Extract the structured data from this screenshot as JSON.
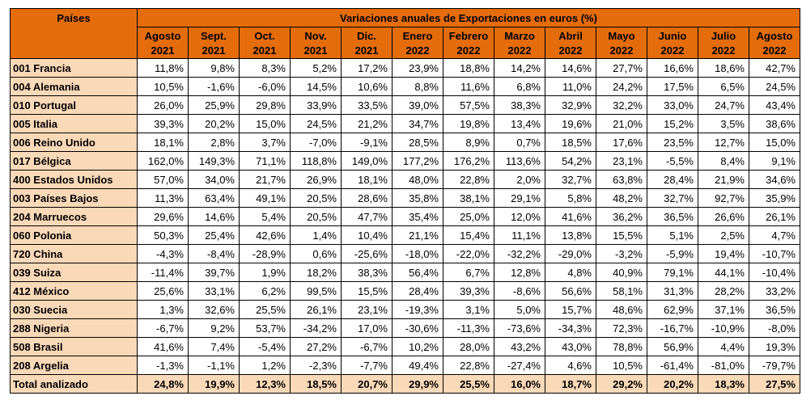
{
  "table": {
    "country_header": "Países",
    "title": "Variaciones anuales de Exportaciones en euros  (%)",
    "columns": [
      {
        "month": "Agosto",
        "year": "2021"
      },
      {
        "month": "Sept.",
        "year": "2021"
      },
      {
        "month": "Oct.",
        "year": "2021"
      },
      {
        "month": "Nov.",
        "year": "2021"
      },
      {
        "month": "Dic.",
        "year": "2021"
      },
      {
        "month": "Enero",
        "year": "2022"
      },
      {
        "month": "Febrero",
        "year": "2022"
      },
      {
        "month": "Marzo",
        "year": "2022"
      },
      {
        "month": "Abril",
        "year": "2022"
      },
      {
        "month": "Mayo",
        "year": "2022"
      },
      {
        "month": "Junio",
        "year": "2022"
      },
      {
        "month": "Julio",
        "year": "2022"
      },
      {
        "month": "Agosto",
        "year": "2022"
      }
    ],
    "rows": [
      {
        "country": "001 Francia",
        "values": [
          "11,8%",
          "9,8%",
          "8,3%",
          "5,2%",
          "17,2%",
          "23,9%",
          "18,8%",
          "14,2%",
          "14,6%",
          "27,7%",
          "16,6%",
          "18,6%",
          "42,7%"
        ]
      },
      {
        "country": "004 Alemania",
        "values": [
          "10,5%",
          "-1,6%",
          "-6,0%",
          "14,5%",
          "10,6%",
          "8,8%",
          "11,6%",
          "6,8%",
          "11,0%",
          "24,2%",
          "17,5%",
          "6,5%",
          "24,5%"
        ]
      },
      {
        "country": "010 Portugal",
        "values": [
          "26,0%",
          "25,9%",
          "29,8%",
          "33,9%",
          "33,5%",
          "39,0%",
          "57,5%",
          "38,3%",
          "32,9%",
          "32,2%",
          "33,0%",
          "24,7%",
          "43,4%"
        ]
      },
      {
        "country": "005 Italia",
        "values": [
          "39,3%",
          "20,2%",
          "15,0%",
          "24,5%",
          "21,2%",
          "34,7%",
          "19,8%",
          "13,4%",
          "19,6%",
          "21,0%",
          "15,2%",
          "3,5%",
          "38,6%"
        ]
      },
      {
        "country": "006 Reino Unido",
        "values": [
          "18,1%",
          "2,8%",
          "3,7%",
          "-7,0%",
          "-9,1%",
          "28,5%",
          "8,9%",
          "0,7%",
          "18,5%",
          "17,6%",
          "23,5%",
          "12,7%",
          "15,0%"
        ]
      },
      {
        "country": "017 Bélgica",
        "values": [
          "162,0%",
          "149,3%",
          "71,1%",
          "118,8%",
          "149,0%",
          "177,2%",
          "176,2%",
          "113,6%",
          "54,2%",
          "23,1%",
          "-5,5%",
          "8,4%",
          "9,1%"
        ]
      },
      {
        "country": "400 Estados Unidos",
        "values": [
          "57,0%",
          "34,0%",
          "21,7%",
          "26,9%",
          "18,1%",
          "48,0%",
          "22,8%",
          "2,0%",
          "32,7%",
          "63,8%",
          "28,4%",
          "21,9%",
          "34,6%"
        ]
      },
      {
        "country": "003 Países Bajos",
        "values": [
          "11,3%",
          "63,4%",
          "49,1%",
          "20,5%",
          "28,6%",
          "35,8%",
          "38,1%",
          "29,1%",
          "5,8%",
          "48,2%",
          "32,7%",
          "92,7%",
          "35,9%"
        ]
      },
      {
        "country": "204 Marruecos",
        "values": [
          "29,6%",
          "14,6%",
          "5,4%",
          "20,5%",
          "47,7%",
          "35,4%",
          "25,0%",
          "12,0%",
          "41,6%",
          "36,2%",
          "36,5%",
          "26,6%",
          "26,1%"
        ]
      },
      {
        "country": "060 Polonia",
        "values": [
          "50,3%",
          "25,4%",
          "42,6%",
          "1,4%",
          "10,4%",
          "21,1%",
          "15,4%",
          "11,1%",
          "13,8%",
          "15,5%",
          "5,1%",
          "2,5%",
          "4,7%"
        ]
      },
      {
        "country": "720 China",
        "values": [
          "-4,3%",
          "-8,4%",
          "-28,9%",
          "0,6%",
          "-25,6%",
          "-18,0%",
          "-22,0%",
          "-32,2%",
          "-29,0%",
          "-3,2%",
          "-5,9%",
          "19,4%",
          "-10,7%"
        ]
      },
      {
        "country": "039 Suiza",
        "values": [
          "-11,4%",
          "39,7%",
          "1,9%",
          "18,2%",
          "38,3%",
          "56,4%",
          "6,7%",
          "12,8%",
          "4,8%",
          "40,9%",
          "79,1%",
          "44,1%",
          "-10,4%"
        ]
      },
      {
        "country": "412 México",
        "values": [
          "25,6%",
          "33,1%",
          "6,2%",
          "99,5%",
          "15,5%",
          "28,4%",
          "39,3%",
          "-8,6%",
          "56,6%",
          "58,1%",
          "31,3%",
          "28,2%",
          "33,2%"
        ]
      },
      {
        "country": "030 Suecia",
        "values": [
          "1,3%",
          "32,6%",
          "25,5%",
          "26,1%",
          "23,1%",
          "-19,3%",
          "3,1%",
          "5,0%",
          "15,7%",
          "48,6%",
          "62,9%",
          "37,1%",
          "36,5%"
        ]
      },
      {
        "country": "288 Nigeria",
        "values": [
          "-6,7%",
          "9,2%",
          "53,7%",
          "-34,2%",
          "17,0%",
          "-30,6%",
          "-11,3%",
          "-73,6%",
          "-34,3%",
          "72,3%",
          "-16,7%",
          "-10,9%",
          "-8,0%"
        ]
      },
      {
        "country": "508 Brasil",
        "values": [
          "41,6%",
          "7,4%",
          "-5,4%",
          "27,2%",
          "-6,7%",
          "10,2%",
          "28,0%",
          "43,2%",
          "43,0%",
          "78,8%",
          "56,9%",
          "4,4%",
          "19,3%"
        ]
      },
      {
        "country": "208 Argelia",
        "values": [
          "-1,3%",
          "-1,1%",
          "1,2%",
          "-2,3%",
          "-7,7%",
          "49,4%",
          "22,8%",
          "-27,4%",
          "4,6%",
          "10,5%",
          "-61,4%",
          "-81,0%",
          "-79,7%"
        ]
      }
    ],
    "total": {
      "country": "Total analizado",
      "values": [
        "24,8%",
        "19,9%",
        "12,3%",
        "18,5%",
        "20,7%",
        "29,9%",
        "25,5%",
        "16,0%",
        "18,7%",
        "29,2%",
        "20,2%",
        "18,3%",
        "27,5%"
      ]
    }
  },
  "chart_data": {
    "type": "table",
    "title": "Variaciones anuales de Exportaciones en euros  (%)",
    "row_header": "Países",
    "categories": [
      "Agosto 2021",
      "Sept. 2021",
      "Oct. 2021",
      "Nov. 2021",
      "Dic. 2021",
      "Enero 2022",
      "Febrero 2022",
      "Marzo 2022",
      "Abril 2022",
      "Mayo 2022",
      "Junio 2022",
      "Julio 2022",
      "Agosto 2022"
    ],
    "series": [
      {
        "name": "001 Francia",
        "values": [
          11.8,
          9.8,
          8.3,
          5.2,
          17.2,
          23.9,
          18.8,
          14.2,
          14.6,
          27.7,
          16.6,
          18.6,
          42.7
        ]
      },
      {
        "name": "004 Alemania",
        "values": [
          10.5,
          -1.6,
          -6.0,
          14.5,
          10.6,
          8.8,
          11.6,
          6.8,
          11.0,
          24.2,
          17.5,
          6.5,
          24.5
        ]
      },
      {
        "name": "010 Portugal",
        "values": [
          26.0,
          25.9,
          29.8,
          33.9,
          33.5,
          39.0,
          57.5,
          38.3,
          32.9,
          32.2,
          33.0,
          24.7,
          43.4
        ]
      },
      {
        "name": "005 Italia",
        "values": [
          39.3,
          20.2,
          15.0,
          24.5,
          21.2,
          34.7,
          19.8,
          13.4,
          19.6,
          21.0,
          15.2,
          3.5,
          38.6
        ]
      },
      {
        "name": "006 Reino Unido",
        "values": [
          18.1,
          2.8,
          3.7,
          -7.0,
          -9.1,
          28.5,
          8.9,
          0.7,
          18.5,
          17.6,
          23.5,
          12.7,
          15.0
        ]
      },
      {
        "name": "017 Bélgica",
        "values": [
          162.0,
          149.3,
          71.1,
          118.8,
          149.0,
          177.2,
          176.2,
          113.6,
          54.2,
          23.1,
          -5.5,
          8.4,
          9.1
        ]
      },
      {
        "name": "400 Estados Unidos",
        "values": [
          57.0,
          34.0,
          21.7,
          26.9,
          18.1,
          48.0,
          22.8,
          2.0,
          32.7,
          63.8,
          28.4,
          21.9,
          34.6
        ]
      },
      {
        "name": "003 Países Bajos",
        "values": [
          11.3,
          63.4,
          49.1,
          20.5,
          28.6,
          35.8,
          38.1,
          29.1,
          5.8,
          48.2,
          32.7,
          92.7,
          35.9
        ]
      },
      {
        "name": "204 Marruecos",
        "values": [
          29.6,
          14.6,
          5.4,
          20.5,
          47.7,
          35.4,
          25.0,
          12.0,
          41.6,
          36.2,
          36.5,
          26.6,
          26.1
        ]
      },
      {
        "name": "060 Polonia",
        "values": [
          50.3,
          25.4,
          42.6,
          1.4,
          10.4,
          21.1,
          15.4,
          11.1,
          13.8,
          15.5,
          5.1,
          2.5,
          4.7
        ]
      },
      {
        "name": "720 China",
        "values": [
          -4.3,
          -8.4,
          -28.9,
          0.6,
          -25.6,
          -18.0,
          -22.0,
          -32.2,
          -29.0,
          -3.2,
          -5.9,
          19.4,
          -10.7
        ]
      },
      {
        "name": "039 Suiza",
        "values": [
          -11.4,
          39.7,
          1.9,
          18.2,
          38.3,
          56.4,
          6.7,
          12.8,
          4.8,
          40.9,
          79.1,
          44.1,
          -10.4
        ]
      },
      {
        "name": "412 México",
        "values": [
          25.6,
          33.1,
          6.2,
          99.5,
          15.5,
          28.4,
          39.3,
          -8.6,
          56.6,
          58.1,
          31.3,
          28.2,
          33.2
        ]
      },
      {
        "name": "030 Suecia",
        "values": [
          1.3,
          32.6,
          25.5,
          26.1,
          23.1,
          -19.3,
          3.1,
          5.0,
          15.7,
          48.6,
          62.9,
          37.1,
          36.5
        ]
      },
      {
        "name": "288 Nigeria",
        "values": [
          -6.7,
          9.2,
          53.7,
          -34.2,
          17.0,
          -30.6,
          -11.3,
          -73.6,
          -34.3,
          72.3,
          -16.7,
          -10.9,
          -8.0
        ]
      },
      {
        "name": "508 Brasil",
        "values": [
          41.6,
          7.4,
          -5.4,
          27.2,
          -6.7,
          10.2,
          28.0,
          43.2,
          43.0,
          78.8,
          56.9,
          4.4,
          19.3
        ]
      },
      {
        "name": "208 Argelia",
        "values": [
          -1.3,
          -1.1,
          1.2,
          -2.3,
          -7.7,
          49.4,
          22.8,
          -27.4,
          4.6,
          10.5,
          -61.4,
          -81.0,
          -79.7
        ]
      },
      {
        "name": "Total analizado",
        "values": [
          24.8,
          19.9,
          12.3,
          18.5,
          20.7,
          29.9,
          25.5,
          16.0,
          18.7,
          29.2,
          20.2,
          18.3,
          27.5
        ]
      }
    ],
    "colors": {
      "header": "#e46c0a",
      "row_label": "#fad9b8"
    }
  }
}
